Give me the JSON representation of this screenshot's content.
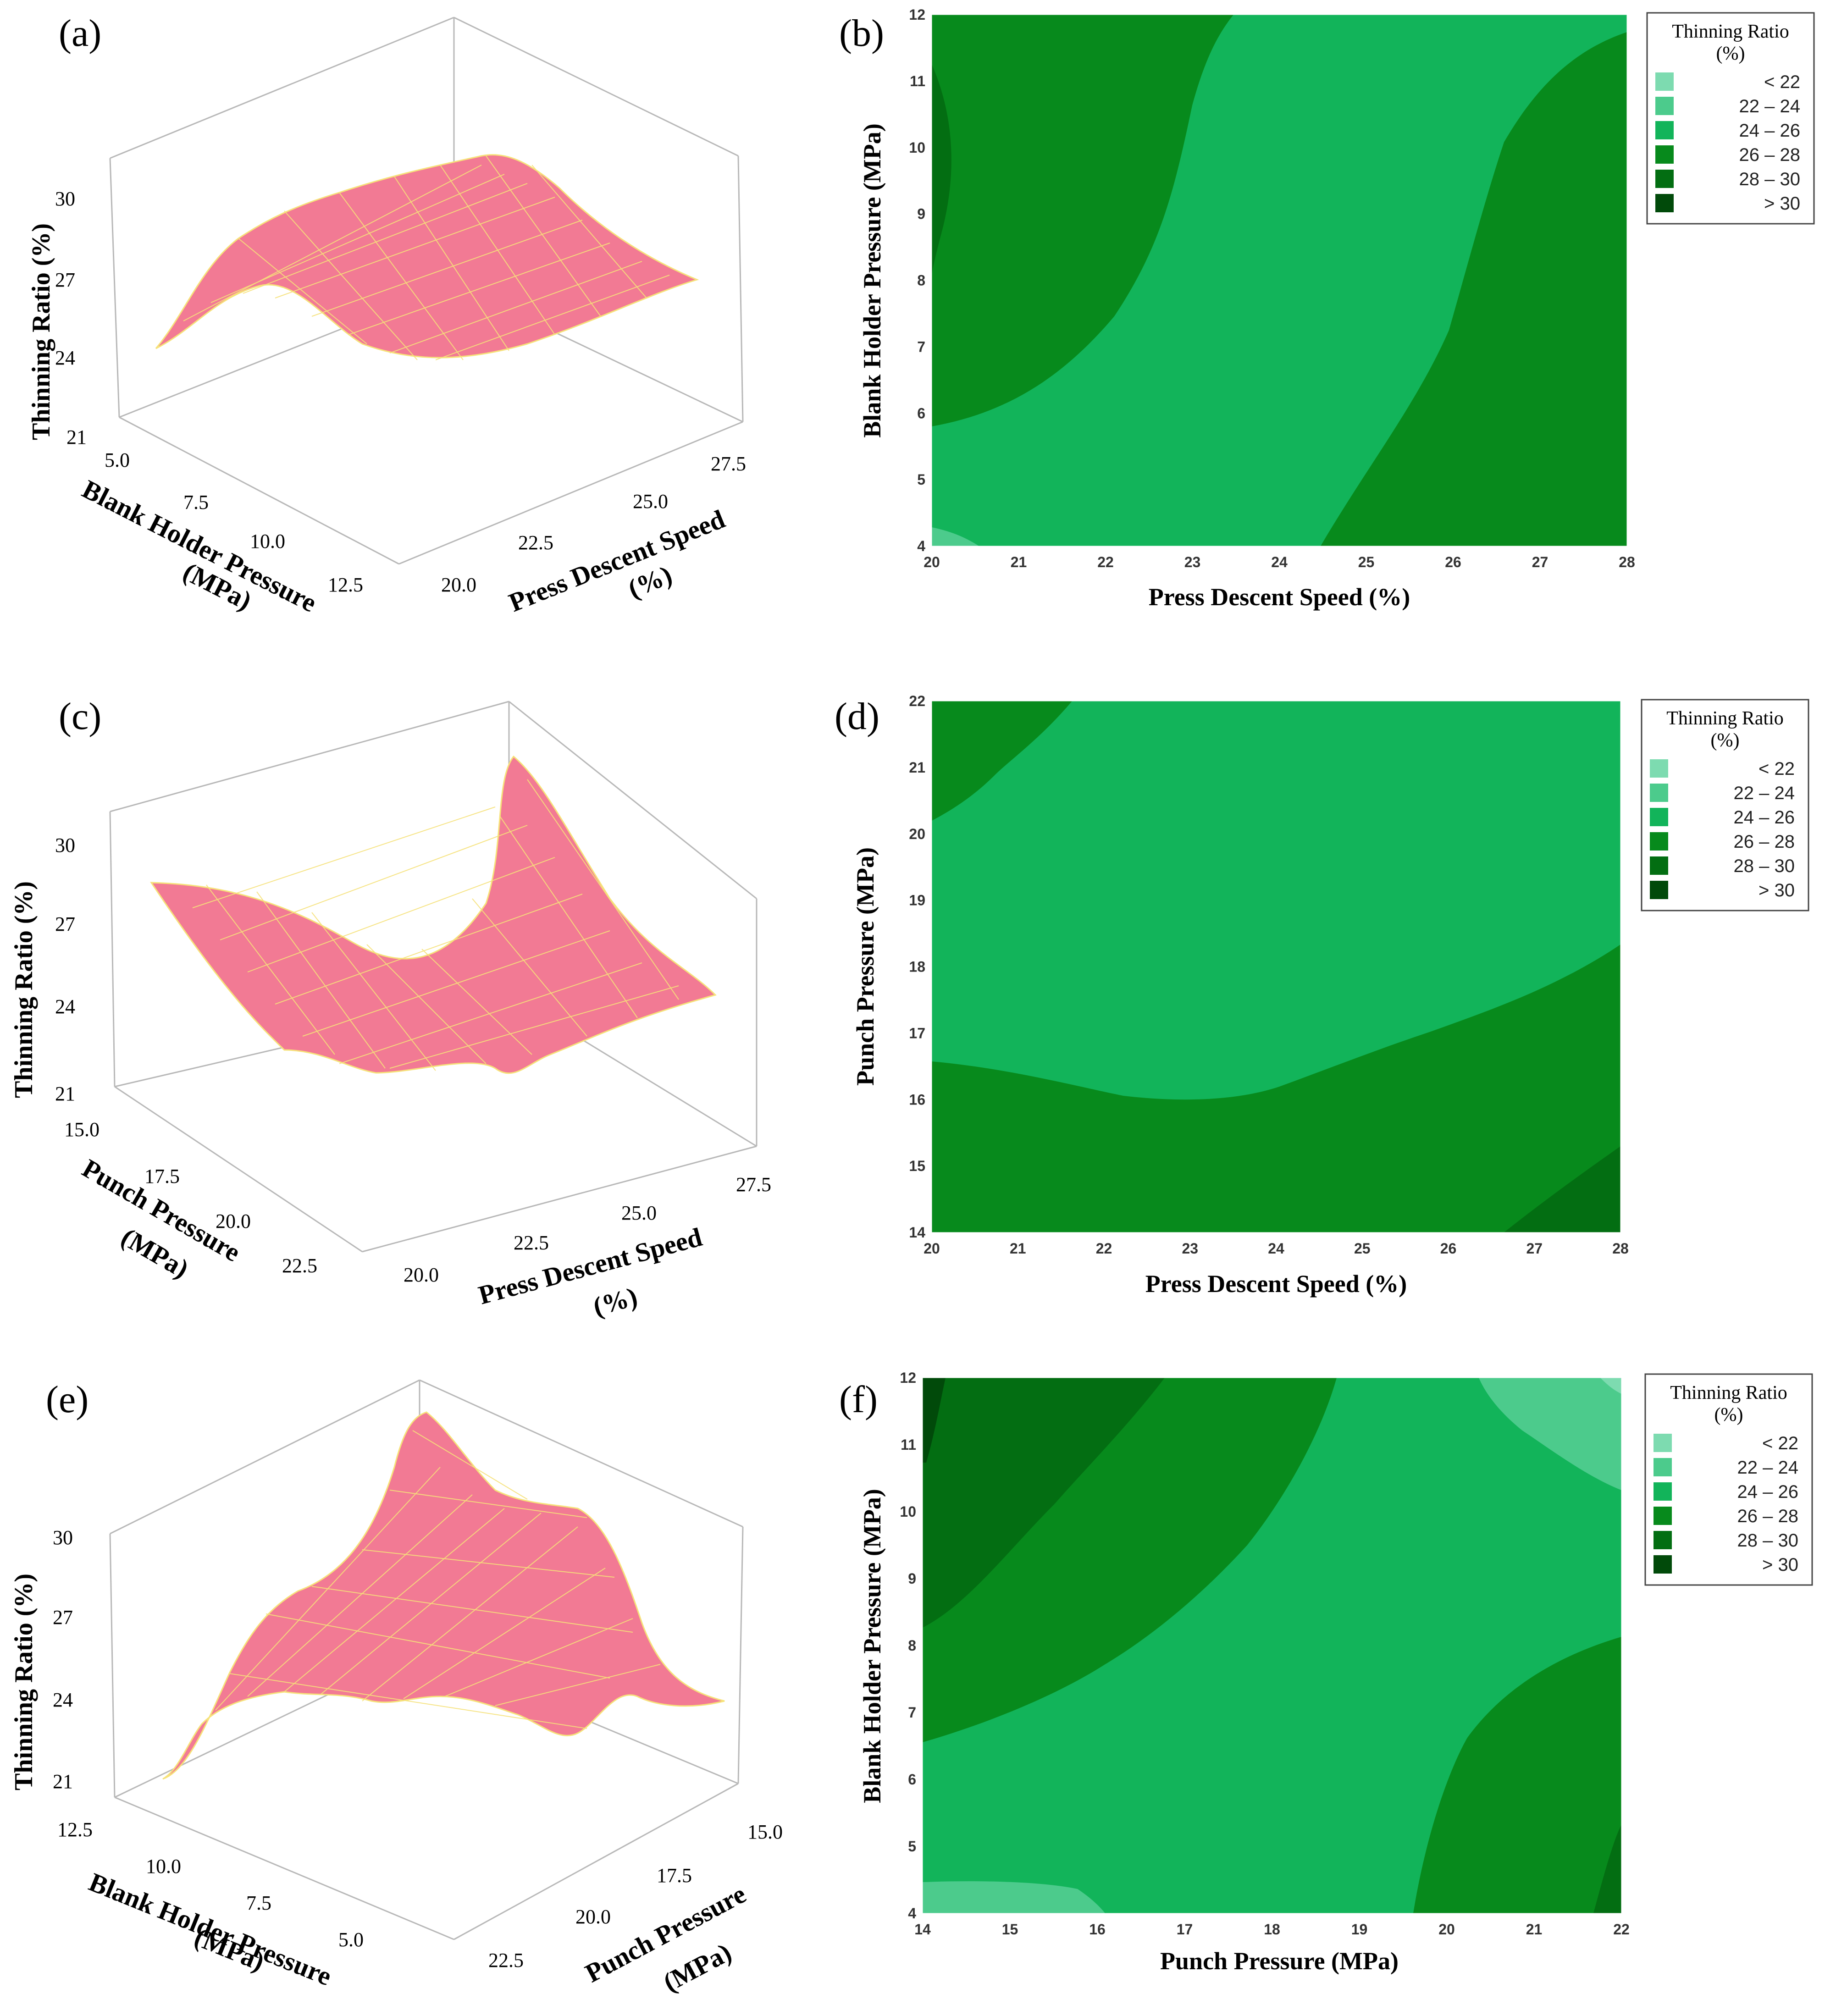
{
  "figure": {
    "legend_title_1": "Thinning Ratio",
    "legend_title_2": "(%)",
    "legend_items": [
      "<  22",
      "22  –  24",
      "24  –  26",
      "26  –  28",
      "28  –  30",
      ">  30"
    ],
    "legend_colors": [
      "#7ddbb0",
      "#4ccb8c",
      "#12b45a",
      "#078a1c",
      "#036e12",
      "#014a0a"
    ]
  },
  "chart_data": [
    {
      "panel": "(a)",
      "type": "surface",
      "zlabel": "Thinning Ratio (%)",
      "zticks": [
        "21",
        "24",
        "27",
        "30"
      ],
      "left_axis_label": [
        "Blank Holder Pressure",
        "(MPa)"
      ],
      "left_ticks": [
        "5.0",
        "7.5",
        "10.0",
        "12.5"
      ],
      "right_axis_label": [
        "Press Descent Speed",
        "(%)"
      ],
      "right_ticks": [
        "20.0",
        "22.5",
        "25.0",
        "27.5"
      ],
      "zlim": [
        21,
        30
      ],
      "surface_color": "#f27a94",
      "mesh_color": "#f6e27a"
    },
    {
      "panel": "(b)",
      "type": "contour",
      "xlabel": "Press Descent Speed (%)",
      "ylabel": "Blank Holder Pressure (MPa)",
      "xticks": [
        "20",
        "21",
        "22",
        "23",
        "24",
        "25",
        "26",
        "27",
        "28"
      ],
      "yticks": [
        "4",
        "5",
        "6",
        "7",
        "8",
        "9",
        "10",
        "11",
        "12"
      ],
      "xlim": [
        20,
        28
      ],
      "ylim": [
        4,
        12
      ]
    },
    {
      "panel": "(c)",
      "type": "surface",
      "zlabel": "Thinning Ratio (%)",
      "zticks": [
        "21",
        "24",
        "27",
        "30"
      ],
      "left_axis_label": [
        "Punch Pressure",
        "(MPa)"
      ],
      "left_ticks": [
        "15.0",
        "17.5",
        "20.0",
        "22.5"
      ],
      "right_axis_label": [
        "Press Descent Speed",
        "(%)"
      ],
      "right_ticks": [
        "20.0",
        "22.5",
        "25.0",
        "27.5"
      ],
      "zlim": [
        21,
        30
      ],
      "surface_color": "#f27a94",
      "mesh_color": "#f6e27a"
    },
    {
      "panel": "(d)",
      "type": "contour",
      "xlabel": "Press Descent Speed (%)",
      "ylabel": "Punch Pressure (MPa)",
      "xticks": [
        "20",
        "21",
        "22",
        "23",
        "24",
        "25",
        "26",
        "27",
        "28"
      ],
      "yticks": [
        "14",
        "15",
        "16",
        "17",
        "18",
        "19",
        "20",
        "21",
        "22"
      ],
      "xlim": [
        20,
        28
      ],
      "ylim": [
        14,
        22
      ]
    },
    {
      "panel": "(e)",
      "type": "surface",
      "zlabel": "Thinning Ratio (%)",
      "zticks": [
        "21",
        "24",
        "27",
        "30"
      ],
      "left_axis_label": [
        "Blank Holder Pressure",
        "(MPa)"
      ],
      "left_ticks": [
        "12.5",
        "10.0",
        "7.5",
        "5.0"
      ],
      "right_axis_label": [
        "Punch Pressure",
        "(MPa)"
      ],
      "right_ticks": [
        "22.5",
        "20.0",
        "17.5",
        "15.0"
      ],
      "zlim": [
        21,
        30
      ],
      "surface_color": "#f27a94",
      "mesh_color": "#f6e27a"
    },
    {
      "panel": "(f)",
      "type": "contour",
      "xlabel": "Punch Pressure (MPa)",
      "ylabel": "Blank Holder Pressure (MPa)",
      "xticks": [
        "14",
        "15",
        "16",
        "17",
        "18",
        "19",
        "20",
        "21",
        "22"
      ],
      "yticks": [
        "4",
        "5",
        "6",
        "7",
        "8",
        "9",
        "10",
        "11",
        "12"
      ],
      "xlim": [
        14,
        22
      ],
      "ylim": [
        4,
        12
      ]
    }
  ]
}
